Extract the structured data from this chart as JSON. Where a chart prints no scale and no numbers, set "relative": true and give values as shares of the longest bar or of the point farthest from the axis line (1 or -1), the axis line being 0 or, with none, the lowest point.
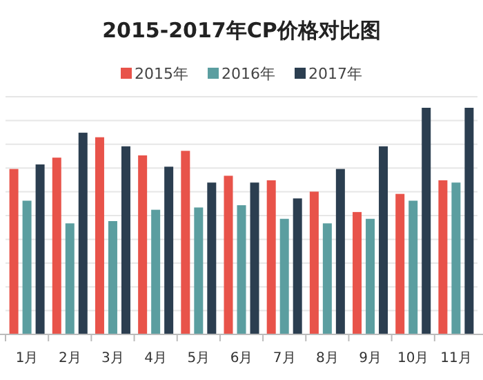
{
  "chart_data": {
    "type": "bar",
    "title": "2015-2017年CP价格对比图",
    "relative": true,
    "grid": "y",
    "legend": "top",
    "categories": [
      "1月",
      "2月",
      "3月",
      "4月",
      "5月",
      "6月",
      "7月",
      "8月",
      "9月",
      "10月",
      "11月"
    ],
    "series": [
      {
        "name": "2015年",
        "color": "#e8534a",
        "values": [
          0.73,
          0.78,
          0.87,
          0.79,
          0.81,
          0.7,
          0.68,
          0.63,
          0.54,
          0.62,
          0.68
        ]
      },
      {
        "name": "2016年",
        "color": "#5b9ea0",
        "values": [
          0.59,
          0.49,
          0.5,
          0.55,
          0.56,
          0.57,
          0.51,
          0.49,
          0.51,
          0.59,
          0.67
        ]
      },
      {
        "name": "2017年",
        "color": "#2b3e50",
        "values": [
          0.75,
          0.89,
          0.83,
          0.74,
          0.67,
          0.67,
          0.6,
          0.73,
          0.83,
          1.0,
          1.0
        ]
      }
    ]
  }
}
